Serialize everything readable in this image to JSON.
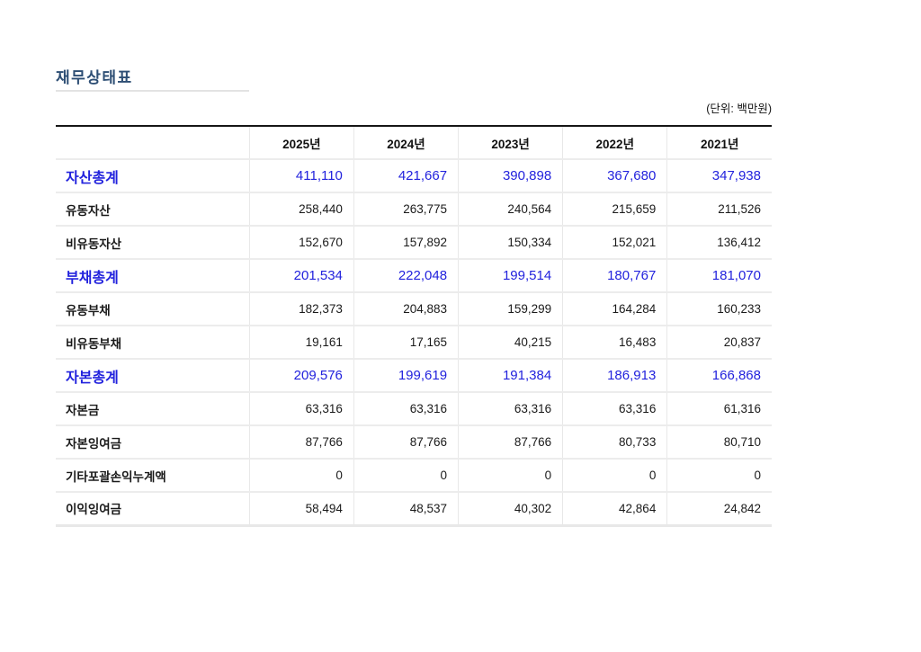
{
  "page": {
    "title": "재무상태표",
    "unit_note": "(단위: 백만원)"
  },
  "colors": {
    "title_navy": "#2d4e74",
    "total_row_blue": "#2222dd",
    "body_text": "#1a1a1a",
    "table_top_border": "#161616",
    "grid_line": "#ececec"
  },
  "table": {
    "columns": [
      "2025년",
      "2024년",
      "2023년",
      "2022년",
      "2021년"
    ],
    "rows": [
      {
        "label": "자산총계",
        "type": "total",
        "values": [
          "411,110",
          "421,667",
          "390,898",
          "367,680",
          "347,938"
        ]
      },
      {
        "label": "유동자산",
        "type": "item",
        "values": [
          "258,440",
          "263,775",
          "240,564",
          "215,659",
          "211,526"
        ]
      },
      {
        "label": "비유동자산",
        "type": "item",
        "values": [
          "152,670",
          "157,892",
          "150,334",
          "152,021",
          "136,412"
        ]
      },
      {
        "label": "부채총계",
        "type": "total",
        "values": [
          "201,534",
          "222,048",
          "199,514",
          "180,767",
          "181,070"
        ]
      },
      {
        "label": "유동부채",
        "type": "item",
        "values": [
          "182,373",
          "204,883",
          "159,299",
          "164,284",
          "160,233"
        ]
      },
      {
        "label": "비유동부채",
        "type": "item",
        "values": [
          "19,161",
          "17,165",
          "40,215",
          "16,483",
          "20,837"
        ]
      },
      {
        "label": "자본총계",
        "type": "total",
        "values": [
          "209,576",
          "199,619",
          "191,384",
          "186,913",
          "166,868"
        ]
      },
      {
        "label": "자본금",
        "type": "item",
        "values": [
          "63,316",
          "63,316",
          "63,316",
          "63,316",
          "61,316"
        ]
      },
      {
        "label": "자본잉여금",
        "type": "item",
        "values": [
          "87,766",
          "87,766",
          "87,766",
          "80,733",
          "80,710"
        ]
      },
      {
        "label": "기타포괄손익누계액",
        "type": "item",
        "values": [
          "0",
          "0",
          "0",
          "0",
          "0"
        ]
      },
      {
        "label": "이익잉여금",
        "type": "item",
        "values": [
          "58,494",
          "48,537",
          "40,302",
          "42,864",
          "24,842"
        ]
      }
    ]
  }
}
